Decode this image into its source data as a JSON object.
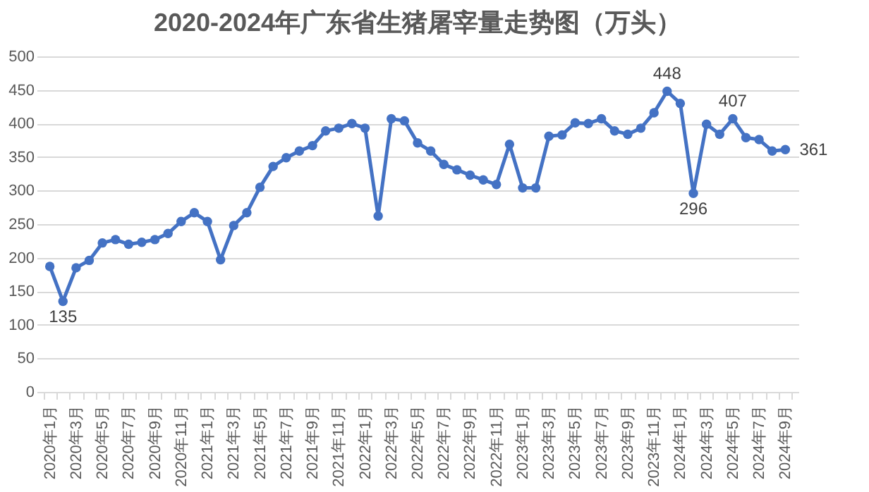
{
  "chart_data": {
    "type": "line",
    "title": "2020-2024年广东省生猪屠宰量走势图（万头）",
    "categories": [
      "2020年1月",
      null,
      "2020年3月",
      null,
      "2020年5月",
      null,
      "2020年7月",
      null,
      "2020年9月",
      null,
      "2020年11月",
      null,
      "2021年1月",
      null,
      "2021年3月",
      null,
      "2021年5月",
      null,
      "2021年7月",
      null,
      "2021年9月",
      null,
      "2021年11月",
      null,
      "2022年1月",
      null,
      "2022年3月",
      null,
      "2022年5月",
      null,
      "2022年7月",
      null,
      "2022年9月",
      null,
      "2022年11月",
      null,
      "2023年1月",
      null,
      "2023年3月",
      null,
      "2023年5月",
      null,
      "2023年7月",
      null,
      "2023年9月",
      null,
      "2023年11月",
      null,
      "2024年1月",
      null,
      "2024年3月",
      null,
      "2024年5月",
      null,
      "2024年7月",
      null,
      "2024年9月"
    ],
    "series": [
      {
        "color": "#4472c4",
        "values": [
          187,
          135,
          185,
          196,
          222,
          227,
          220,
          223,
          227,
          236,
          254,
          267,
          254,
          197,
          248,
          267,
          305,
          336,
          349,
          359,
          367,
          389,
          393,
          400,
          393,
          262,
          407,
          404,
          371,
          359,
          339,
          331,
          323,
          316,
          309,
          369,
          304,
          304,
          381,
          383,
          401,
          400,
          407,
          389,
          384,
          393,
          416,
          448,
          430,
          296,
          399,
          384,
          407,
          379,
          376,
          359,
          361
        ],
        "value_labels": [
          null,
          "135",
          null,
          null,
          null,
          null,
          null,
          null,
          null,
          null,
          null,
          null,
          null,
          null,
          null,
          null,
          null,
          null,
          null,
          null,
          null,
          null,
          null,
          null,
          null,
          null,
          null,
          null,
          null,
          null,
          null,
          null,
          null,
          null,
          null,
          null,
          null,
          null,
          null,
          null,
          null,
          null,
          null,
          null,
          null,
          null,
          null,
          "448",
          null,
          "296",
          null,
          null,
          "407",
          null,
          null,
          null,
          "361"
        ]
      }
    ],
    "ylim": [
      0,
      500
    ],
    "yticks": [
      0,
      50,
      100,
      150,
      200,
      250,
      300,
      350,
      400,
      450,
      500
    ],
    "grid": "y",
    "marker": "circle",
    "line_style": "solid"
  }
}
